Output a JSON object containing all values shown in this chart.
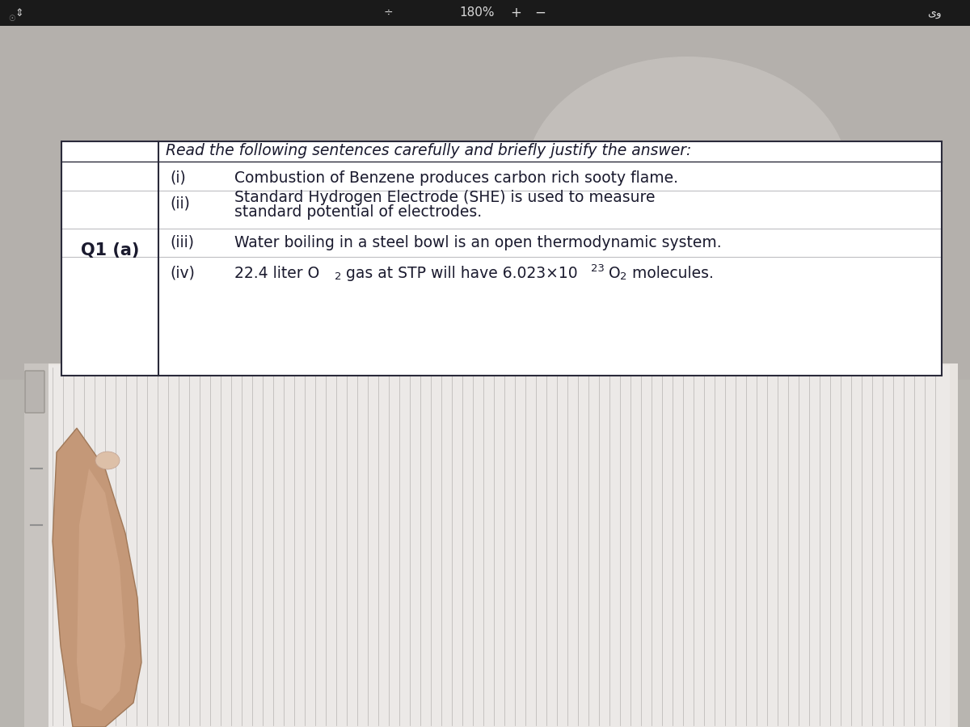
{
  "bg_upper_color": "#b8b5b0",
  "bg_lower_color": "#c8c4c0",
  "paper_bg": "#e8e4e0",
  "paper_shadow": "#d0ccc8",
  "vertical_line_color": "#8a8684",
  "box_bg": "#ffffff",
  "box_border": "#2a2a3a",
  "text_color": "#1a1a2e",
  "title_bar_text": "Q1 (a)",
  "header_text": "Read the following sentences carefully and briefly justify the answer:",
  "item_i_label": "(i)",
  "item_i_text": "Combustion of Benzene produces carbon rich sooty flame.",
  "item_ii_label": "(ii)",
  "item_ii_line1": "Standard Hydrogen Electrode (SHE) is used to measure",
  "item_ii_line2": "standard potential of electrodes.",
  "item_iii_label": "(iii)",
  "item_iii_text": "Water boiling in a steel bowl is an open thermodynamic system.",
  "item_iv_label": "(iv)",
  "item_iv_pre": "22.4 liter O",
  "item_iv_sub2a": "2",
  "item_iv_mid": " gas at STP will have 6.023×10",
  "item_iv_sup": "23",
  "item_iv_post": " O",
  "item_iv_sub2b": "2",
  "item_iv_end": " molecules.",
  "toolbar_text": "180%",
  "toolbar_plus": "+",
  "toolbar_minus": "−",
  "top_bar_color": "#1a1a1a",
  "top_text_color": "#d8d8d8",
  "hand_color": "#c49878",
  "hand_shadow": "#a07858",
  "paper_white": "#f0eeec",
  "binding_box_color": "#d8d4d0",
  "small_dash_color": "#909090"
}
